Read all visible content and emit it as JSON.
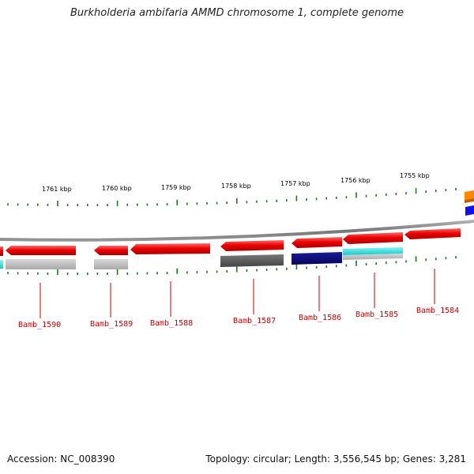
{
  "title": "Burkholderia ambifaria AMMD chromosome 1, complete genome",
  "footer": {
    "accession": "Accession: NC_008390",
    "topology": "Topology: circular; Length: 3,556,545 bp; Genes: 3,281"
  },
  "ruler": {
    "ticks": [
      "1761 kbp",
      "1760 kbp",
      "1759 kbp",
      "1758 kbp",
      "1757 kbp",
      "1756 kbp",
      "1755 kbp"
    ]
  },
  "genes": [
    {
      "label": "Bamb_1590"
    },
    {
      "label": "Bamb_1589"
    },
    {
      "label": "Bamb_1588"
    },
    {
      "label": "Bamb_1587"
    },
    {
      "label": "Bamb_1586"
    },
    {
      "label": "Bamb_1585"
    },
    {
      "label": "Bamb_1584"
    }
  ],
  "colors": {
    "cds": "#ee0000",
    "backbone": "#888888",
    "tick": "#1a7a1a",
    "label": "#cc0000",
    "track_gray": "#b5b5b5",
    "track_dark": "#555555",
    "track_navy": "#0a0a80",
    "track_cyan": "#22dddd",
    "track_orange": "#ff8800",
    "track_blue": "#1010ee"
  }
}
